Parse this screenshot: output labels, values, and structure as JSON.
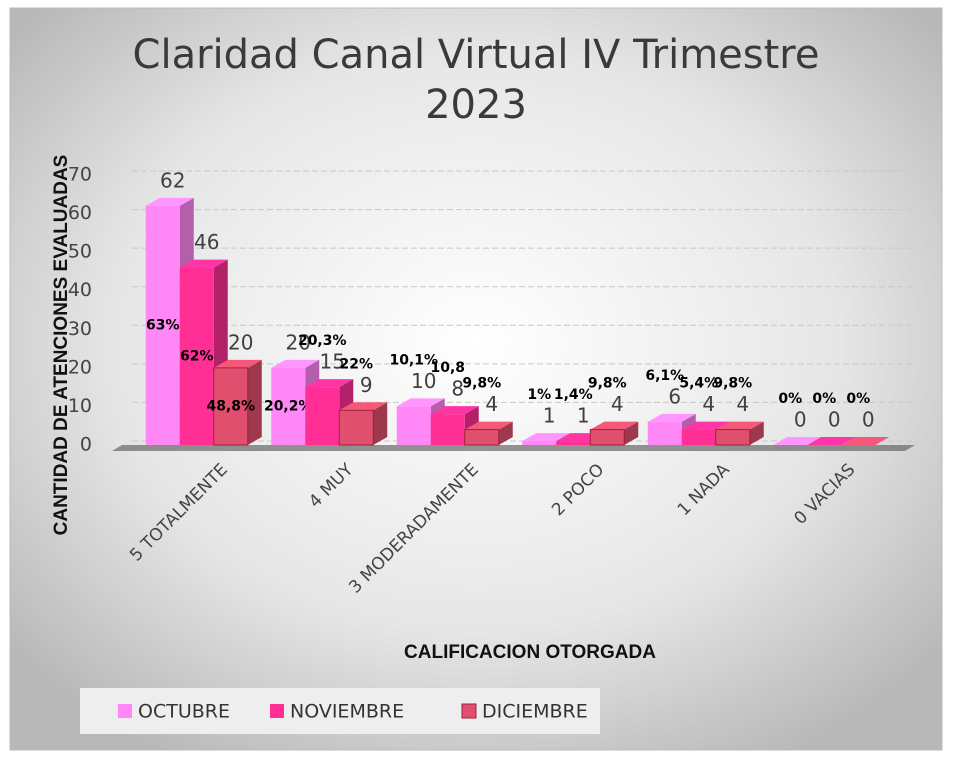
{
  "chart_data": {
    "type": "bar",
    "title": "Claridad Canal Virtual IV Trimestre 2023",
    "x_label": "CALIFICACION OTORGADA",
    "y_label": "CANTIDAD DE ATENCIONES EVALUADAS",
    "categories": [
      "5 TOTALMENTE",
      "4 MUY",
      "3 MODERADAMENTE",
      "2 POCO",
      "1 NADA",
      "0 VACIAS"
    ],
    "series": [
      {
        "name": "OCTUBRE",
        "color": "#ff88f6",
        "values": [
          62,
          20,
          10,
          1,
          6,
          0
        ],
        "percent_labels": [
          "63%",
          "20,2%",
          "10,1%",
          "1%",
          "6,1%",
          "0%"
        ]
      },
      {
        "name": "NOVIEMBRE",
        "color": "#ff2f96",
        "values": [
          46,
          15,
          8,
          1,
          4,
          0
        ],
        "percent_labels": [
          "62%",
          "20,3%",
          "10,8",
          "1,4%",
          "5,4%",
          "0%"
        ]
      },
      {
        "name": "DICIEMBRE",
        "color": "#e0506e",
        "values": [
          20,
          9,
          4,
          4,
          4,
          0
        ],
        "percent_labels": [
          "48,8%",
          "22%",
          "9,8%",
          "9,8%",
          "9,8%",
          "0%"
        ]
      }
    ],
    "ylim": [
      0,
      70
    ],
    "yticks": [
      0,
      10,
      20,
      30,
      40,
      50,
      60,
      70
    ],
    "grid": true,
    "legend": "bottom"
  }
}
